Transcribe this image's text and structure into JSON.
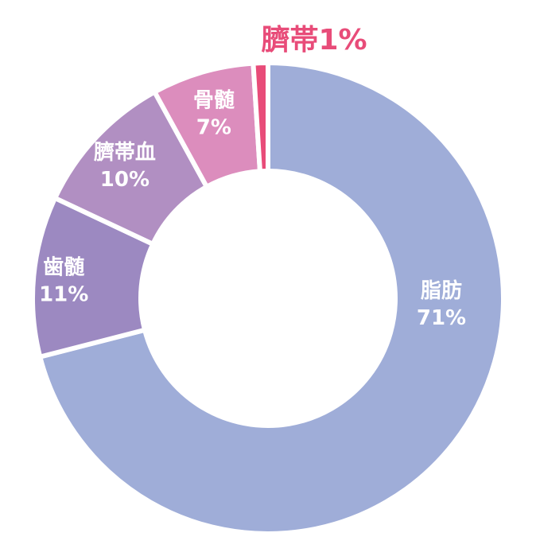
{
  "chart_data": {
    "type": "pie",
    "variant": "donut",
    "slices": [
      {
        "name": "脂肪",
        "value": 71,
        "label": "71%",
        "color": "#9fadd8",
        "label_color": "#ffffff"
      },
      {
        "name": "歯髄",
        "value": 11,
        "label": "11%",
        "color": "#9c89c1",
        "label_color": "#ffffff"
      },
      {
        "name": "臍帯血",
        "value": 10,
        "label": "10%",
        "color": "#b18fc2",
        "label_color": "#ffffff"
      },
      {
        "name": "骨髄",
        "value": 7,
        "label": "7%",
        "color": "#dc8dbd",
        "label_color": "#ffffff"
      },
      {
        "name": "臍帯",
        "value": 1,
        "label": "1%",
        "color": "#e84c79",
        "label_color": "#e84c79",
        "label_outside": true
      }
    ],
    "start": "top",
    "direction": "clockwise",
    "legend": "none"
  }
}
